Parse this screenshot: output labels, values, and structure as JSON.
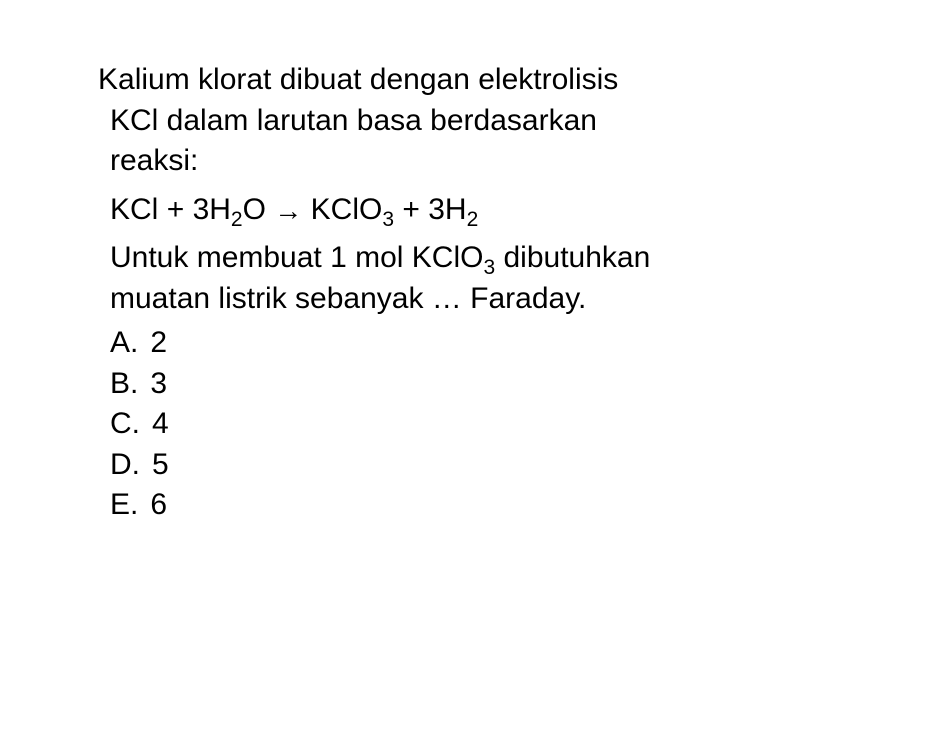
{
  "document": {
    "font_family": "Arial, Helvetica, sans-serif",
    "font_size_pt": 22,
    "text_color": "#000000",
    "background_color": "#ffffff",
    "language": "id"
  },
  "question": {
    "intro_line1": "Kalium klorat dibuat dengan elektrolisis",
    "intro_line2": "KCl dalam larutan basa berdasarkan",
    "intro_line3": "reaksi:",
    "equation": {
      "reactant1": "KCl",
      "plus1": "+",
      "reactant2_coef": "3H",
      "reactant2_sub": "2",
      "reactant2_rest": "O",
      "arrow": "→",
      "product1": "KClO",
      "product1_sub": "3",
      "plus2": "+",
      "product2_coef": "3H",
      "product2_sub": "2"
    },
    "ask_line1_part1": "Untuk membuat 1 mol KClO",
    "ask_line1_sub": "3",
    "ask_line1_part2": " dibutuhkan",
    "ask_line2": "muatan listrik sebanyak … Faraday."
  },
  "options": [
    {
      "letter": "A.",
      "value": "2"
    },
    {
      "letter": "B.",
      "value": "3"
    },
    {
      "letter": "C.",
      "value": "4"
    },
    {
      "letter": "D.",
      "value": "5"
    },
    {
      "letter": "E.",
      "value": "6"
    }
  ]
}
